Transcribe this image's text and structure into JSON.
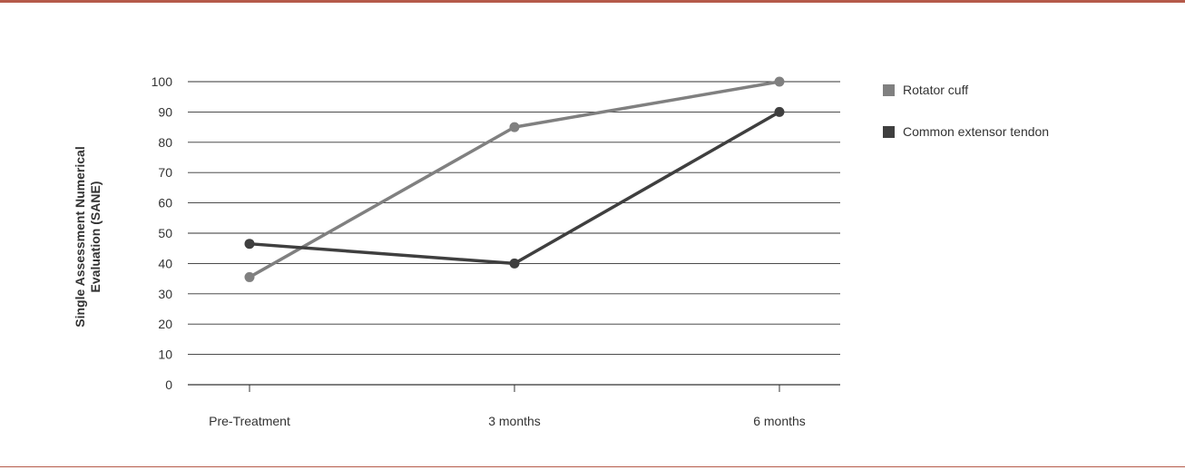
{
  "chart_data": {
    "type": "line",
    "title": "",
    "xlabel": "",
    "ylabel_lines": [
      "Single Assessment Numerical",
      "Evaluation (SANE)"
    ],
    "categories": [
      "Pre-Treatment",
      "3 months",
      "6 months"
    ],
    "ylim": [
      0,
      100
    ],
    "yticks": [
      0,
      10,
      20,
      30,
      40,
      50,
      60,
      70,
      80,
      90,
      100
    ],
    "grid": true,
    "legend_position": "right",
    "series": [
      {
        "name": "Rotator cuff",
        "color": "#808080",
        "values": [
          35.5,
          85,
          100
        ]
      },
      {
        "name": "Common extensor tendon",
        "color": "#3f3f3f",
        "values": [
          46.5,
          40,
          90
        ]
      }
    ]
  },
  "colors": {
    "frame_border": "#b55a4a",
    "gridline": "#333333",
    "text": "#333333"
  }
}
